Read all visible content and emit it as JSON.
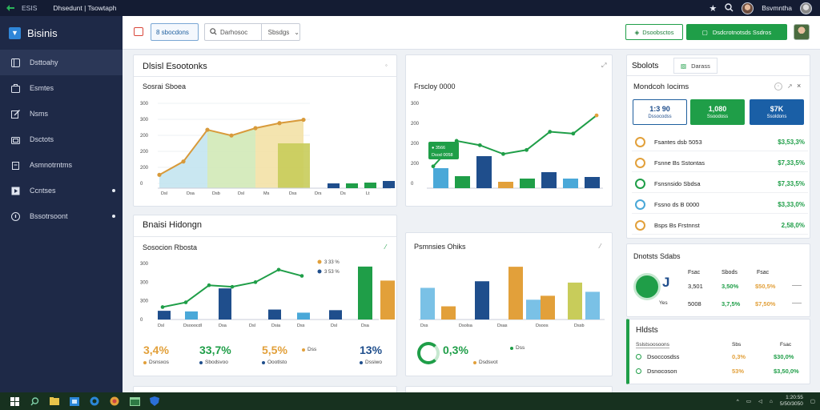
{
  "window": {
    "app_name": "ESIS",
    "title": "Dhsedunt | Tsowtaph",
    "user_name": "Bsvmntha"
  },
  "sidebar": {
    "brand": "Bisinis",
    "items": [
      {
        "label": "Dsttoahy",
        "icon": "dashboard-icon",
        "active": true
      },
      {
        "label": "Esmtes",
        "icon": "briefcase-icon"
      },
      {
        "label": "Nsms",
        "icon": "edit-icon"
      },
      {
        "label": "Dsctots",
        "icon": "folder-icon"
      },
      {
        "label": "Asmnotrntms",
        "icon": "clipboard-icon"
      },
      {
        "label": "Ccntses",
        "icon": "play-icon",
        "dot": true
      },
      {
        "label": "Bssotrsoont",
        "icon": "info-icon",
        "dot": true
      }
    ]
  },
  "toolbar": {
    "tab_label": "8 sbocdons",
    "search_placeholder": "Darhosoc",
    "select_label": "Sbsdgs",
    "btn_outline": "Dsoobsctos",
    "btn_primary": "Dsdcrotnotsds Ssdros"
  },
  "panel_top_left": {
    "title": "Dlsisl Esootonks",
    "subtitle": "Sosrai Sboea",
    "chart_data": {
      "type": "area",
      "y_ticks": [
        "300",
        "300",
        "200",
        "200",
        "200",
        "0"
      ],
      "x_ticks": [
        "Dsl",
        "Dsa",
        "Dsb",
        "Dsl",
        "Ms",
        "Dss",
        "Drs",
        "Ds",
        "Lt"
      ],
      "line_values": [
        40,
        80,
        175,
        158,
        180,
        195,
        205
      ],
      "colors": {
        "line": "#d89a3a",
        "fill_a": "#bfe3ee",
        "fill_b": "#cfe7b3",
        "fill_c": "#f2dfa1",
        "bar": "#c8cc5a"
      },
      "mini_bars": [
        {
          "value": 6,
          "color": "#1f4e8c"
        },
        {
          "value": 6,
          "color": "#1f9e48"
        },
        {
          "value": 7,
          "color": "#1f9e48"
        },
        {
          "value": 9,
          "color": "#1f4e8c"
        }
      ]
    }
  },
  "panel_top_mid": {
    "subtitle": "Frscloy 0000",
    "chart_data": {
      "type": "line",
      "y_ticks": [
        "300",
        "200",
        "200",
        "200",
        "0"
      ],
      "line_values": [
        60,
        130,
        118,
        94,
        105,
        155,
        150,
        200
      ],
      "bars": [
        {
          "value": 25,
          "color": "#4aa8d8"
        },
        {
          "value": 15,
          "color": "#1f9e48"
        },
        {
          "value": 40,
          "color": "#1f4e8c"
        },
        {
          "value": 8,
          "color": "#e2a03a"
        },
        {
          "value": 12,
          "color": "#1f9e48"
        },
        {
          "value": 20,
          "color": "#1f4e8c"
        },
        {
          "value": 12,
          "color": "#4aa8d8"
        },
        {
          "value": 14,
          "color": "#1f4e8c"
        }
      ],
      "tooltip": {
        "line1": "● 3566",
        "line2": "Dsod 0058"
      }
    }
  },
  "panel_bottom": {
    "title": "Bnaisi Hidongn",
    "left": {
      "subtitle": "Sosocion Rbosta",
      "chart_data": {
        "type": "line+bar",
        "y_ticks": [
          "300",
          "300",
          "300",
          "0"
        ],
        "x_ticks": [
          "Dsl",
          "Dsooocdl",
          "Dsa",
          "Dsl",
          "Dsia",
          "Dss",
          "Dsl",
          "Dsa"
        ],
        "line_values": [
          40,
          55,
          110,
          105,
          120,
          160,
          140
        ],
        "legend": [
          {
            "label": "3 33 %",
            "color": "#e2a03a"
          },
          {
            "label": "3 53 %",
            "color": "#1f4e8c"
          }
        ],
        "bars": [
          {
            "value": 28,
            "color": "#1f4e8c"
          },
          {
            "value": 26,
            "color": "#4aa8d8"
          },
          {
            "value": 100,
            "color": "#1f4e8c"
          },
          {
            "value": 32,
            "color": "#1f4e8c"
          },
          {
            "value": 22,
            "color": "#4aa8d8"
          },
          {
            "value": 30,
            "color": "#1f4e8c"
          },
          {
            "value": 170,
            "color": "#1f9e48"
          },
          {
            "value": 125,
            "color": "#e2a03a"
          }
        ]
      },
      "kpis": [
        {
          "value": "3,4%",
          "color": "#e2a03a",
          "sub": "Dsnsxos",
          "sub_color": "#e2a03a"
        },
        {
          "value": "33,7%",
          "color": "#1f9e48",
          "sub": "Sbodsvoo",
          "sub_color": "#1f4e8c"
        },
        {
          "value": "5,5%",
          "color": "#e2a03a",
          "sub": "Oootlsto",
          "sub_color": "#1f4e8c"
        },
        {
          "value": "",
          "color": "#444",
          "sub": "Dss",
          "sub_color": "#e2a03a"
        },
        {
          "value": "13%",
          "color": "#1f4e8c",
          "sub": "Dssiwo",
          "sub_color": "#1f4e8c"
        }
      ]
    },
    "right": {
      "subtitle": "Psmnsies Ohiks",
      "chart_data": {
        "type": "bar",
        "bars": [
          {
            "value": 48,
            "color": "#7ac1e6"
          },
          {
            "value": 20,
            "color": "#e2a03a"
          },
          {
            "value": 58,
            "color": "#1f4e8c"
          },
          {
            "value": 80,
            "color": "#e2a03a"
          },
          {
            "value": 30,
            "color": "#7ac1e6"
          },
          {
            "value": 36,
            "color": "#e2a03a"
          },
          {
            "value": 56,
            "color": "#c8cc5a"
          },
          {
            "value": 42,
            "color": "#7ac1e6"
          }
        ],
        "x_ticks": [
          "Dss",
          "Dsolsa",
          "Dsas",
          "Dsoos",
          "Dssb"
        ]
      },
      "kpis": [
        {
          "value": "0,3%",
          "color": "#1f9e48",
          "sub": "Dsdsvot",
          "sub_color": "#e2a03a"
        },
        {
          "value": "",
          "color": "#444",
          "sub": "Dss",
          "sub_color": "#1f9e48"
        }
      ]
    }
  },
  "right_top": {
    "tab_active": "Sbolots",
    "tab_other": "Darass",
    "title": "Mondcoh Iocims",
    "stats": [
      {
        "value": "1:3 90",
        "label": "Dssocodss",
        "style": "outline"
      },
      {
        "value": "1,080",
        "label": "Ssoodoss",
        "style": "green"
      },
      {
        "value": "$7K",
        "label": "Ssoldons",
        "style": "blue"
      }
    ],
    "rows": [
      {
        "label": "Fsantes dsb 5053",
        "value": "$3,53,3%",
        "color": "#e2a03a"
      },
      {
        "label": "Fsnne Bs Sstontas",
        "value": "$7,33,5%",
        "color": "#e2a03a"
      },
      {
        "label": "Fsnsnsido Sbdsa",
        "value": "$7,33,5%",
        "color": "#1f9e48"
      },
      {
        "label": "Fssno ds B 0000",
        "value": "$3,33,0%",
        "color": "#4aa8d8"
      },
      {
        "label": "Bsps Bs Frstnnst",
        "value": "2,58,0%",
        "color": "#e2a03a"
      }
    ]
  },
  "right_mid": {
    "title": "Dnotsts Sdabs",
    "cols": [
      "Fsac",
      "Sbods",
      "Fsac"
    ],
    "ring_label": "J",
    "ring_sub": "Yes",
    "rows": [
      {
        "a": "3,501",
        "b": "3,50%",
        "c": "$50,5%"
      },
      {
        "a": "5008",
        "b": "3,7,5%",
        "c": "$7,50%"
      }
    ]
  },
  "right_bottom": {
    "title": "Hldsts",
    "head_l": "Sslstsoosoons",
    "head_m": "Sbs",
    "head_r": "Fsac",
    "rows": [
      {
        "label": "Dsoccosdss",
        "m": "0,3%",
        "r": "$30,0%"
      },
      {
        "label": "Dsnocoson",
        "m": "53%",
        "r": "$3,50,0%"
      }
    ]
  },
  "taskbar": {
    "time": "1:20:55",
    "date": "5/50/3050"
  }
}
